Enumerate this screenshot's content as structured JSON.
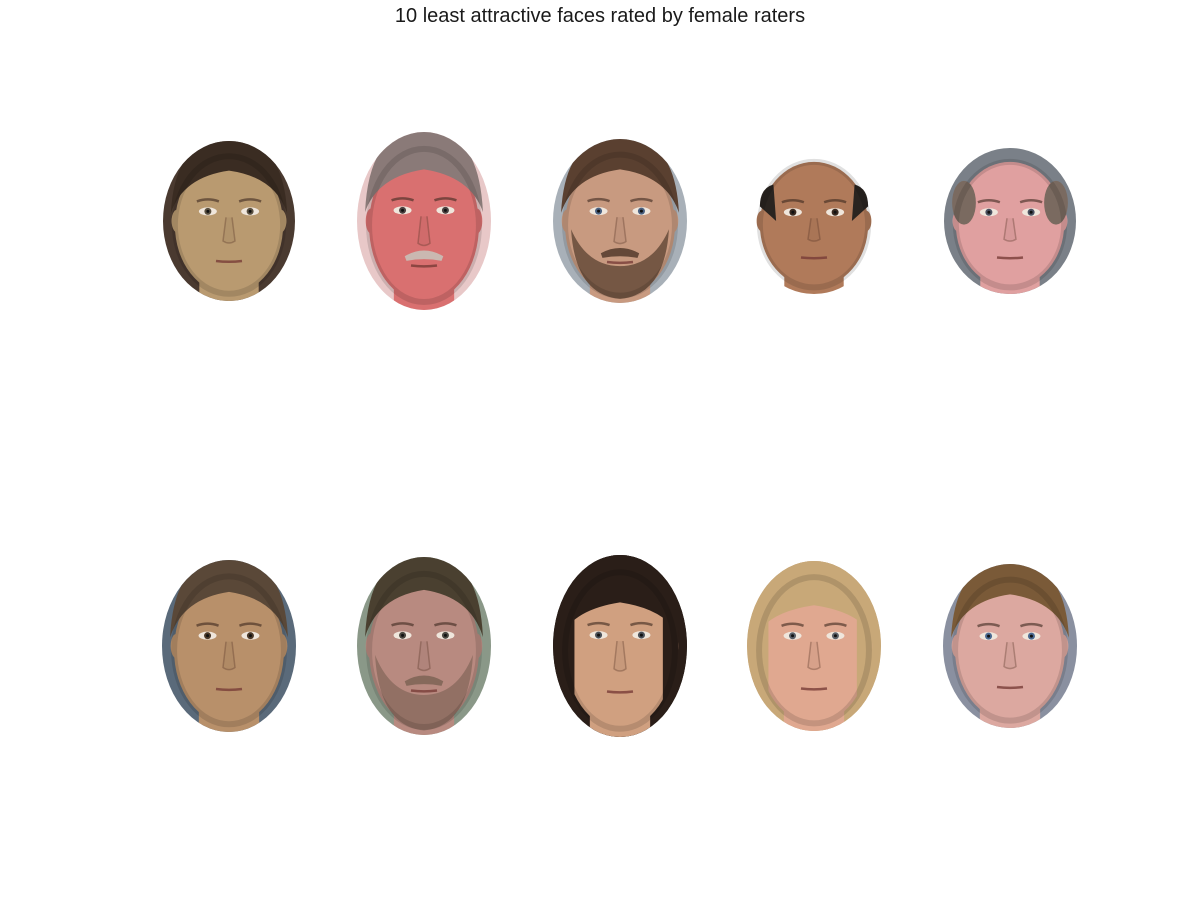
{
  "title": "10 least attractive faces rated by female raters",
  "faces": [
    {
      "skin": "#b99a70",
      "hair": "#3a2c22",
      "bg": "#4a3a30",
      "hair_style": "pulled-back",
      "beard": "none",
      "mustache": "none",
      "eyes": "#5a5040"
    },
    {
      "skin": "#d97070",
      "hair": "#8a7a78",
      "bg": "#e8c8c8",
      "hair_style": "swept",
      "beard": "none",
      "mustache": "gray",
      "eyes": "#4a4040"
    },
    {
      "skin": "#c89a80",
      "hair": "#5a4030",
      "bg": "#a8b0b8",
      "hair_style": "short",
      "beard": "full",
      "mustache": "full",
      "eyes": "#4a6080"
    },
    {
      "skin": "#b07a5a",
      "hair": "#2a2420",
      "bg": "#ffffff",
      "hair_style": "bald-top",
      "beard": "none",
      "mustache": "none",
      "eyes": "#3a2a20"
    },
    {
      "skin": "#e0a0a0",
      "hair": "#7a6a60",
      "bg": "#7a8088",
      "hair_style": "balding",
      "beard": "none",
      "mustache": "none",
      "eyes": "#4a5060"
    },
    {
      "skin": "#b8906a",
      "hair": "#5a4838",
      "bg": "#5a6a7a",
      "hair_style": "pulled-back",
      "beard": "none",
      "mustache": "none",
      "eyes": "#4a3828"
    },
    {
      "skin": "#b88a80",
      "hair": "#4a4030",
      "bg": "#8a9888",
      "hair_style": "short",
      "beard": "light",
      "mustache": "light",
      "eyes": "#4a4840"
    },
    {
      "skin": "#d0a080",
      "hair": "#2a1e18",
      "bg": "#1a1614",
      "hair_style": "long-dark",
      "beard": "none",
      "mustache": "none",
      "eyes": "#4a5058"
    },
    {
      "skin": "#e0a890",
      "hair": "#c8a878",
      "bg": "#d0b890",
      "hair_style": "long-blonde",
      "beard": "none",
      "mustache": "none",
      "eyes": "#5a6068"
    },
    {
      "skin": "#dca8a0",
      "hair": "#7a5a38",
      "bg": "#8a90a0",
      "hair_style": "short",
      "beard": "none",
      "mustache": "none",
      "eyes": "#4a6890"
    }
  ]
}
